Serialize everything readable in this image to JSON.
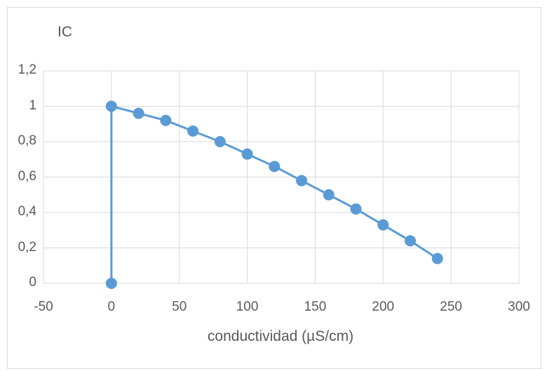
{
  "chart_data": {
    "type": "scatter",
    "xlabel": "conductividad (µS/cm)",
    "ylabel": "IC",
    "xlim": [
      -50,
      300
    ],
    "ylim": [
      0,
      1.2
    ],
    "xticks": [
      "-50",
      "0",
      "50",
      "100",
      "150",
      "200",
      "250",
      "300"
    ],
    "yticks": [
      "0",
      "0,2",
      "0,4",
      "0,6",
      "0,8",
      "1",
      "1,2"
    ],
    "grid": true,
    "series": [
      {
        "x": [
          0,
          0,
          20,
          40,
          60,
          80,
          100,
          120,
          140,
          160,
          180,
          200,
          220,
          240
        ],
        "y": [
          0,
          1,
          0.96,
          0.92,
          0.86,
          0.8,
          0.73,
          0.66,
          0.58,
          0.5,
          0.42,
          0.33,
          0.24,
          0.14
        ],
        "color": "#5b9bd5"
      }
    ]
  }
}
